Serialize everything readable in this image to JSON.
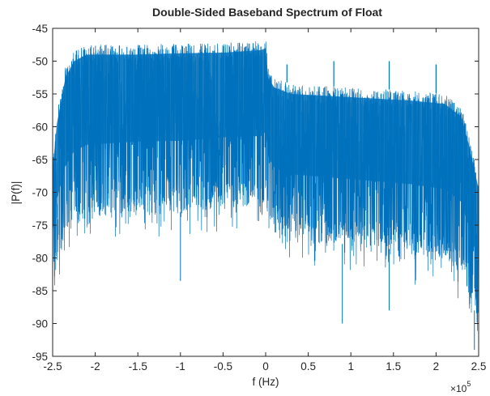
{
  "chart_data": {
    "type": "line",
    "title": "Double-Sided Baseband Spectrum of Float",
    "xlabel": "f (Hz)",
    "ylabel": "|P(f)|",
    "x_multiplier_label": "×10",
    "x_multiplier_exponent": "5",
    "xlim": [
      -250000,
      250000
    ],
    "ylim": [
      -95,
      -45
    ],
    "x_ticks": [
      -250000,
      -200000,
      -150000,
      -100000,
      -50000,
      0,
      50000,
      100000,
      150000,
      200000,
      250000
    ],
    "x_tick_labels": [
      "-2.5",
      "-2",
      "-1.5",
      "-1",
      "-0.5",
      "0",
      "0.5",
      "1",
      "1.5",
      "2",
      "2.5"
    ],
    "y_ticks": [
      -45,
      -50,
      -55,
      -60,
      -65,
      -70,
      -75,
      -80,
      -85,
      -90,
      -95
    ],
    "y_tick_labels": [
      "-45",
      "-50",
      "-55",
      "-60",
      "-65",
      "-70",
      "-75",
      "-80",
      "-85",
      "-90",
      "-95"
    ],
    "grid": false,
    "line_color": "#0072bd",
    "series": [
      {
        "envelope": [
          {
            "f": -250000,
            "upper": -65,
            "lower": -83
          },
          {
            "f": -245000,
            "upper": -58,
            "lower": -80
          },
          {
            "f": -235000,
            "upper": -51,
            "lower": -77
          },
          {
            "f": -225000,
            "upper": -48.5,
            "lower": -75
          },
          {
            "f": -210000,
            "upper": -47.5,
            "lower": -74
          },
          {
            "f": -150000,
            "upper": -47.5,
            "lower": -73
          },
          {
            "f": -100000,
            "upper": -47.3,
            "lower": -73
          },
          {
            "f": -50000,
            "upper": -47.2,
            "lower": -72
          },
          {
            "f": -5000,
            "upper": -46.8,
            "lower": -72
          },
          {
            "f": 0,
            "upper": -46.5,
            "lower": -71
          },
          {
            "f": 3000,
            "upper": -51,
            "lower": -74
          },
          {
            "f": 10000,
            "upper": -52.5,
            "lower": -76
          },
          {
            "f": 30000,
            "upper": -53.5,
            "lower": -77
          },
          {
            "f": 100000,
            "upper": -54,
            "lower": -78
          },
          {
            "f": 170000,
            "upper": -54.5,
            "lower": -79
          },
          {
            "f": 210000,
            "upper": -55,
            "lower": -80
          },
          {
            "f": 230000,
            "upper": -57,
            "lower": -82
          },
          {
            "f": 240000,
            "upper": -62,
            "lower": -86
          },
          {
            "f": 250000,
            "upper": -68,
            "lower": -90
          }
        ],
        "spurs": [
          {
            "f": 25000,
            "y": -50.5
          },
          {
            "f": 80000,
            "y": -50
          },
          {
            "f": 145000,
            "y": -50
          },
          {
            "f": 200000,
            "y": -50.5
          }
        ],
        "dips": [
          {
            "f": -100000,
            "y": -83.5
          },
          {
            "f": 90000,
            "y": -90
          },
          {
            "f": 145000,
            "y": -88
          },
          {
            "f": 245000,
            "y": -94
          }
        ]
      }
    ]
  }
}
